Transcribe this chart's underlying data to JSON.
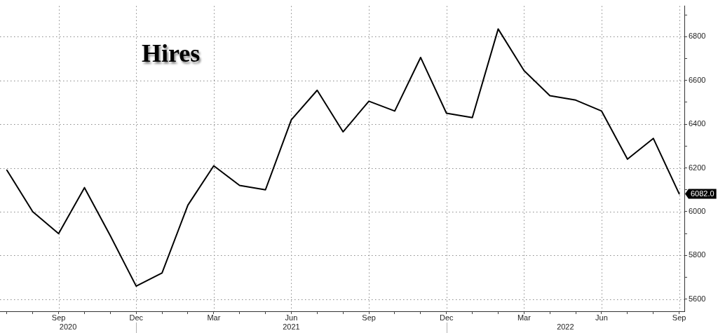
{
  "chart_data": {
    "type": "line",
    "title": "Hires",
    "x": [
      "2020-07",
      "2020-08",
      "2020-09",
      "2020-10",
      "2020-11",
      "2020-12",
      "2021-01",
      "2021-02",
      "2021-03",
      "2021-04",
      "2021-05",
      "2021-06",
      "2021-07",
      "2021-08",
      "2021-09",
      "2021-10",
      "2021-11",
      "2021-12",
      "2022-01",
      "2022-02",
      "2022-03",
      "2022-04",
      "2022-05",
      "2022-06",
      "2022-07",
      "2022-08",
      "2022-09"
    ],
    "values": [
      6190,
      6000,
      5900,
      6110,
      5890,
      5660,
      5720,
      6030,
      6210,
      6120,
      6100,
      6420,
      6555,
      6365,
      6505,
      6460,
      6705,
      6450,
      6430,
      6835,
      6645,
      6530,
      6510,
      6460,
      6240,
      6335,
      6082
    ],
    "color": "#000000",
    "value_labels": [
      null,
      null,
      null,
      null,
      null,
      null,
      null,
      null,
      null,
      null,
      null,
      null,
      null,
      null,
      null,
      null,
      null,
      null,
      null,
      null,
      null,
      null,
      null,
      null,
      null,
      null,
      "6082.0"
    ],
    "annotations": [
      "2020",
      "2021",
      "2022"
    ],
    "xlim": [
      "2020-06-23",
      "2022-09-07"
    ],
    "xticks": [
      {
        "value": "2020-07",
        "label": null
      },
      {
        "value": "2020-08",
        "label": null
      },
      {
        "value": "2020-09",
        "label": "Sep"
      },
      {
        "value": "2020-10",
        "label": null
      },
      {
        "value": "2020-11",
        "label": null
      },
      {
        "value": "2020-12",
        "label": "Dec"
      },
      {
        "value": "2021-01",
        "label": null
      },
      {
        "value": "2021-02",
        "label": null
      },
      {
        "value": "2021-03",
        "label": "Mar"
      },
      {
        "value": "2021-04",
        "label": null
      },
      {
        "value": "2021-05",
        "label": null
      },
      {
        "value": "2021-06",
        "label": "Jun"
      },
      {
        "value": "2021-07",
        "label": null
      },
      {
        "value": "2021-08",
        "label": null
      },
      {
        "value": "2021-09",
        "label": "Sep"
      },
      {
        "value": "2021-10",
        "label": null
      },
      {
        "value": "2021-11",
        "label": null
      },
      {
        "value": "2021-12",
        "label": "Dec"
      },
      {
        "value": "2022-01",
        "label": null
      },
      {
        "value": "2022-02",
        "label": null
      },
      {
        "value": "2022-03",
        "label": "Mar"
      },
      {
        "value": "2022-04",
        "label": null
      },
      {
        "value": "2022-05",
        "label": null
      },
      {
        "value": "2022-06",
        "label": "Jun"
      },
      {
        "value": "2022-07",
        "label": null
      },
      {
        "value": "2022-08",
        "label": null
      },
      {
        "value": "2022-09",
        "label": "Sep"
      }
    ],
    "ylim": [
      5545,
      6940
    ],
    "yticks": [
      5600,
      {
        "value": 5700,
        "label": null
      },
      5800,
      {
        "value": 5900,
        "label": null
      },
      6000,
      {
        "value": 6100,
        "label": null
      },
      6200,
      {
        "value": 6300,
        "label": null
      },
      6400,
      {
        "value": 6500,
        "label": null
      },
      6600,
      {
        "value": 6700,
        "label": null
      },
      6800,
      {
        "value": 6900,
        "label": null
      }
    ],
    "grid": true
  }
}
